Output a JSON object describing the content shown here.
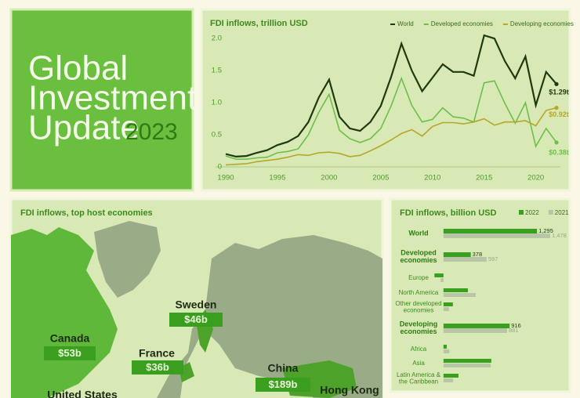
{
  "header": {
    "title_lines": [
      "Global",
      "Investment",
      "Update"
    ],
    "year": "2023"
  },
  "chart_data": [
    {
      "type": "line",
      "title": "FDI inflows, trillion USD",
      "x": [
        1990,
        1991,
        1992,
        1993,
        1994,
        1995,
        1996,
        1997,
        1998,
        1999,
        2000,
        2001,
        2002,
        2003,
        2004,
        2005,
        2006,
        2007,
        2008,
        2009,
        2010,
        2011,
        2012,
        2013,
        2014,
        2015,
        2016,
        2017,
        2018,
        2019,
        2020,
        2021,
        2022
      ],
      "series": [
        {
          "name": "World",
          "color": "#1f3a0f",
          "values": [
            0.2,
            0.16,
            0.17,
            0.22,
            0.26,
            0.34,
            0.39,
            0.48,
            0.7,
            1.08,
            1.36,
            0.78,
            0.6,
            0.56,
            0.7,
            0.95,
            1.4,
            1.92,
            1.5,
            1.18,
            1.39,
            1.6,
            1.48,
            1.48,
            1.42,
            2.05,
            2.0,
            1.65,
            1.38,
            1.72,
            0.96,
            1.48,
            1.29
          ],
          "value_labels": [
            null,
            null,
            null,
            null,
            null,
            null,
            null,
            null,
            null,
            null,
            null,
            null,
            null,
            null,
            null,
            null,
            null,
            null,
            null,
            null,
            null,
            null,
            null,
            null,
            null,
            null,
            null,
            null,
            null,
            null,
            null,
            null,
            "$1.29t"
          ]
        },
        {
          "name": "Developed economies",
          "color": "#6cc04a",
          "values": [
            0.17,
            0.12,
            0.12,
            0.14,
            0.15,
            0.22,
            0.24,
            0.28,
            0.5,
            0.85,
            1.13,
            0.57,
            0.44,
            0.38,
            0.44,
            0.6,
            0.95,
            1.38,
            0.96,
            0.7,
            0.74,
            0.92,
            0.78,
            0.76,
            0.7,
            1.31,
            1.34,
            0.99,
            0.68,
            1.0,
            0.32,
            0.6,
            0.38
          ],
          "value_labels": [
            null,
            null,
            null,
            null,
            null,
            null,
            null,
            null,
            null,
            null,
            null,
            null,
            null,
            null,
            null,
            null,
            null,
            null,
            null,
            null,
            null,
            null,
            null,
            null,
            null,
            null,
            null,
            null,
            null,
            null,
            null,
            null,
            "$0.38t"
          ]
        },
        {
          "name": "Developing economies",
          "color": "#b5a72a",
          "values": [
            0.03,
            0.04,
            0.05,
            0.08,
            0.1,
            0.12,
            0.15,
            0.19,
            0.18,
            0.22,
            0.23,
            0.21,
            0.16,
            0.18,
            0.25,
            0.33,
            0.42,
            0.52,
            0.58,
            0.48,
            0.63,
            0.69,
            0.69,
            0.67,
            0.7,
            0.75,
            0.65,
            0.7,
            0.7,
            0.72,
            0.64,
            0.88,
            0.92
          ],
          "value_labels": [
            null,
            null,
            null,
            null,
            null,
            null,
            null,
            null,
            null,
            null,
            null,
            null,
            null,
            null,
            null,
            null,
            null,
            null,
            null,
            null,
            null,
            null,
            null,
            null,
            null,
            null,
            null,
            null,
            null,
            null,
            null,
            null,
            "$0.92t"
          ]
        }
      ],
      "xlim": [
        1989.5,
        2022.5
      ],
      "xticks": [
        1990,
        1995,
        2000,
        2005,
        2010,
        2015,
        2020
      ],
      "ylim": [
        0,
        2.1
      ],
      "yticks": [
        0,
        0.5,
        {
          "value": 1,
          "label": "1.0"
        },
        1.5,
        {
          "value": 2,
          "label": "2.0"
        }
      ],
      "legend": "top-right",
      "grid": false
    },
    {
      "type": "map",
      "title": "FDI inflows, top host economies",
      "regions": [
        {
          "name": "Canada",
          "value": 53,
          "value_label": "$53b"
        },
        {
          "name": "Sweden",
          "value": 46,
          "value_label": "$46b"
        },
        {
          "name": "France",
          "value": 36,
          "value_label": "$36b"
        },
        {
          "name": "China",
          "value": 189,
          "value_label": "$189b"
        },
        {
          "name": "United States"
        },
        {
          "name": "Hong Kong"
        }
      ]
    },
    {
      "type": "hbar",
      "title": "FDI inflows, billion USD",
      "categories": [
        "World",
        "Developed economies",
        "Europe",
        "North America",
        "Other developed economies",
        "Developing economies",
        "Africa",
        "Asia",
        "Latin America & the Caribbean"
      ],
      "series": [
        {
          "name": "2022",
          "color": "#3a9e1e",
          "values": [
            1295,
            378,
            -125,
            338,
            130,
            916,
            45,
            662,
            208
          ],
          "value_labels": [
            "1,295",
            "378",
            null,
            null,
            null,
            "916",
            null,
            null,
            null
          ]
        },
        {
          "name": "2021",
          "color": "#b9c6a6",
          "values": [
            1478,
            597,
            -40,
            447,
            76,
            881,
            80,
            655,
            134
          ],
          "value_labels": [
            "1,478",
            "597",
            null,
            null,
            null,
            "881",
            null,
            null,
            null
          ]
        }
      ],
      "xlim": [
        -150,
        1500
      ],
      "legend": "top-right"
    }
  ]
}
